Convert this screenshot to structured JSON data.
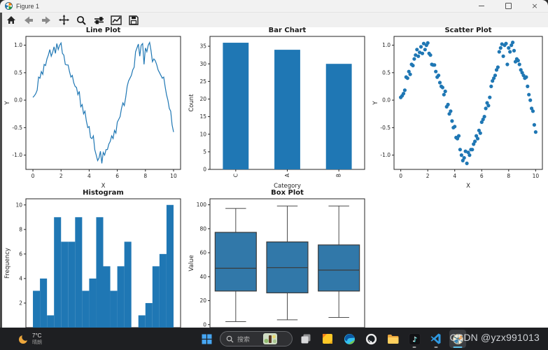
{
  "window": {
    "title": "Figure 1",
    "controls": {
      "minimize": "minimize",
      "maximize": "maximize",
      "close": "×"
    }
  },
  "toolbar": {
    "buttons": [
      "home",
      "back",
      "forward",
      "pan",
      "zoom",
      "configure-subplots",
      "edit-axes",
      "save"
    ]
  },
  "colors": {
    "accent_blue": "#1f77b4",
    "box_fill": "#3178a9",
    "box_edge": "#3a3a3a",
    "whisker": "#4d4d4d",
    "taskbar_bg": "#1e1f22"
  },
  "noisy_sine_points": [
    [
      0.0,
      0.05
    ],
    [
      0.1,
      0.08
    ],
    [
      0.2,
      0.12
    ],
    [
      0.3,
      0.18
    ],
    [
      0.4,
      0.42
    ],
    [
      0.5,
      0.4
    ],
    [
      0.6,
      0.52
    ],
    [
      0.7,
      0.47
    ],
    [
      0.8,
      0.65
    ],
    [
      0.9,
      0.63
    ],
    [
      1.0,
      0.75
    ],
    [
      1.1,
      0.82
    ],
    [
      1.2,
      0.92
    ],
    [
      1.3,
      0.8
    ],
    [
      1.4,
      0.87
    ],
    [
      1.5,
      0.97
    ],
    [
      1.6,
      0.85
    ],
    [
      1.7,
      1.03
    ],
    [
      1.8,
      0.92
    ],
    [
      1.9,
      1.0
    ],
    [
      2.0,
      1.04
    ],
    [
      2.1,
      0.85
    ],
    [
      2.2,
      0.82
    ],
    [
      2.3,
      0.65
    ],
    [
      2.4,
      0.64
    ],
    [
      2.5,
      0.64
    ],
    [
      2.6,
      0.52
    ],
    [
      2.7,
      0.42
    ],
    [
      2.8,
      0.45
    ],
    [
      2.9,
      0.32
    ],
    [
      3.0,
      0.25
    ],
    [
      3.1,
      0.23
    ],
    [
      3.2,
      0.1
    ],
    [
      3.3,
      0.16
    ],
    [
      3.4,
      -0.12
    ],
    [
      3.5,
      -0.08
    ],
    [
      3.6,
      -0.25
    ],
    [
      3.7,
      -0.2
    ],
    [
      3.8,
      -0.38
    ],
    [
      3.9,
      -0.5
    ],
    [
      4.0,
      -0.48
    ],
    [
      4.1,
      -0.68
    ],
    [
      4.2,
      -0.7
    ],
    [
      4.3,
      -0.65
    ],
    [
      4.4,
      -0.9
    ],
    [
      4.5,
      -1.0
    ],
    [
      4.6,
      -1.1
    ],
    [
      4.7,
      -1.05
    ],
    [
      4.8,
      -0.93
    ],
    [
      4.9,
      -1.15
    ],
    [
      5.0,
      -0.95
    ],
    [
      5.1,
      -1.0
    ],
    [
      5.2,
      -0.9
    ],
    [
      5.3,
      -0.9
    ],
    [
      5.4,
      -0.8
    ],
    [
      5.5,
      -0.75
    ],
    [
      5.6,
      -0.65
    ],
    [
      5.7,
      -0.7
    ],
    [
      5.8,
      -0.55
    ],
    [
      5.9,
      -0.6
    ],
    [
      6.0,
      -0.4
    ],
    [
      6.1,
      -0.35
    ],
    [
      6.2,
      -0.3
    ],
    [
      6.3,
      -0.15
    ],
    [
      6.4,
      -0.05
    ],
    [
      6.5,
      -0.1
    ],
    [
      6.6,
      0.05
    ],
    [
      6.7,
      0.25
    ],
    [
      6.8,
      0.35
    ],
    [
      6.9,
      0.4
    ],
    [
      7.0,
      0.45
    ],
    [
      7.1,
      0.55
    ],
    [
      7.2,
      0.6
    ],
    [
      7.3,
      0.88
    ],
    [
      7.4,
      0.95
    ],
    [
      7.5,
      1.02
    ],
    [
      7.6,
      0.8
    ],
    [
      7.7,
      1.0
    ],
    [
      7.8,
      1.03
    ],
    [
      7.9,
      0.65
    ],
    [
      8.0,
      0.95
    ],
    [
      8.1,
      0.88
    ],
    [
      8.2,
      1.0
    ],
    [
      8.3,
      1.05
    ],
    [
      8.4,
      0.9
    ],
    [
      8.5,
      0.7
    ],
    [
      8.6,
      0.75
    ],
    [
      8.7,
      0.72
    ],
    [
      8.8,
      0.65
    ],
    [
      8.9,
      0.55
    ],
    [
      9.0,
      0.5
    ],
    [
      9.1,
      0.45
    ],
    [
      9.2,
      0.4
    ],
    [
      9.3,
      0.42
    ],
    [
      9.4,
      0.25
    ],
    [
      9.5,
      0.1
    ],
    [
      9.6,
      0.0
    ],
    [
      9.7,
      -0.15
    ],
    [
      9.8,
      -0.2
    ],
    [
      9.9,
      -0.45
    ],
    [
      10.0,
      -0.58
    ]
  ],
  "chart_data": [
    {
      "type": "line",
      "title": "Line Plot",
      "xlabel": "X",
      "ylabel": "Y",
      "xlim": [
        -0.5,
        10.5
      ],
      "ylim": [
        -1.26,
        1.16
      ],
      "xticks": [
        0,
        2,
        4,
        6,
        8,
        10
      ],
      "yticks": [
        -1.0,
        -0.5,
        0.0,
        0.5,
        1.0
      ],
      "ydec": 1,
      "points_key": "noisy_sine_points"
    },
    {
      "type": "bar",
      "title": "Bar Chart",
      "xlabel": "Category",
      "ylabel": "Count",
      "categories": [
        "C",
        "A",
        "B"
      ],
      "values": [
        36,
        34,
        30
      ],
      "xlim": [
        -0.5,
        2.5
      ],
      "ylim": [
        0,
        37.8
      ],
      "yticks": [
        0,
        5,
        10,
        15,
        20,
        25,
        30,
        35
      ],
      "ydec": 0,
      "tick_label_rotation": 90
    },
    {
      "type": "scatter",
      "title": "Scatter Plot",
      "xlabel": "X",
      "ylabel": "Y",
      "xlim": [
        -0.5,
        10.5
      ],
      "ylim": [
        -1.26,
        1.16
      ],
      "xticks": [
        0,
        2,
        4,
        6,
        8,
        10
      ],
      "yticks": [
        -1.0,
        -0.5,
        0.0,
        0.5,
        1.0
      ],
      "ydec": 1,
      "points_key": "noisy_sine_points"
    },
    {
      "type": "histogram",
      "title": "Histogram",
      "xlabel": "",
      "ylabel": "Frequency",
      "bin_start": 0,
      "bin_width": 5,
      "counts": [
        3,
        4,
        1,
        9,
        7,
        7,
        9,
        3,
        4,
        9,
        5,
        3,
        5,
        7,
        0,
        1,
        2,
        5,
        6,
        10
      ],
      "xlim": [
        -5,
        105
      ],
      "ylim": [
        0,
        10.5
      ],
      "yticks": [
        2,
        4,
        6,
        8,
        10
      ],
      "ydec": 0,
      "note": "x axis hidden behind taskbar"
    },
    {
      "type": "box",
      "title": "Box Plot",
      "xlabel": "",
      "ylabel": "Value",
      "groups": [
        {
          "whislo": 2.5,
          "q1": 28.0,
          "med": 47.0,
          "q3": 77.0,
          "whishi": 97.0
        },
        {
          "whislo": 4.0,
          "q1": 26.5,
          "med": 47.5,
          "q3": 69.0,
          "whishi": 99.0
        },
        {
          "whislo": 6.0,
          "q1": 28.0,
          "med": 45.5,
          "q3": 66.5,
          "whishi": 99.0
        }
      ],
      "xlim": [
        0.5,
        3.5
      ],
      "ylim": [
        -2.5,
        105
      ],
      "yticks": [
        0,
        20,
        40,
        60,
        80,
        100
      ],
      "ydec": 0,
      "note": "x axis hidden behind taskbar"
    }
  ],
  "taskbar": {
    "weather": {
      "temp": "7°C",
      "condition": "晴朗"
    },
    "search": {
      "placeholder": "搜索"
    },
    "apps": [
      "start",
      "task-view",
      "sticky-notes",
      "edge",
      "github",
      "file-explorer",
      "tiktok",
      "vscode",
      "matplotlib-figure"
    ],
    "running_apps": [
      "tiktok",
      "vscode",
      "matplotlib-figure"
    ],
    "active_app": "matplotlib-figure",
    "watermark": "CSDN @yzx991013"
  }
}
